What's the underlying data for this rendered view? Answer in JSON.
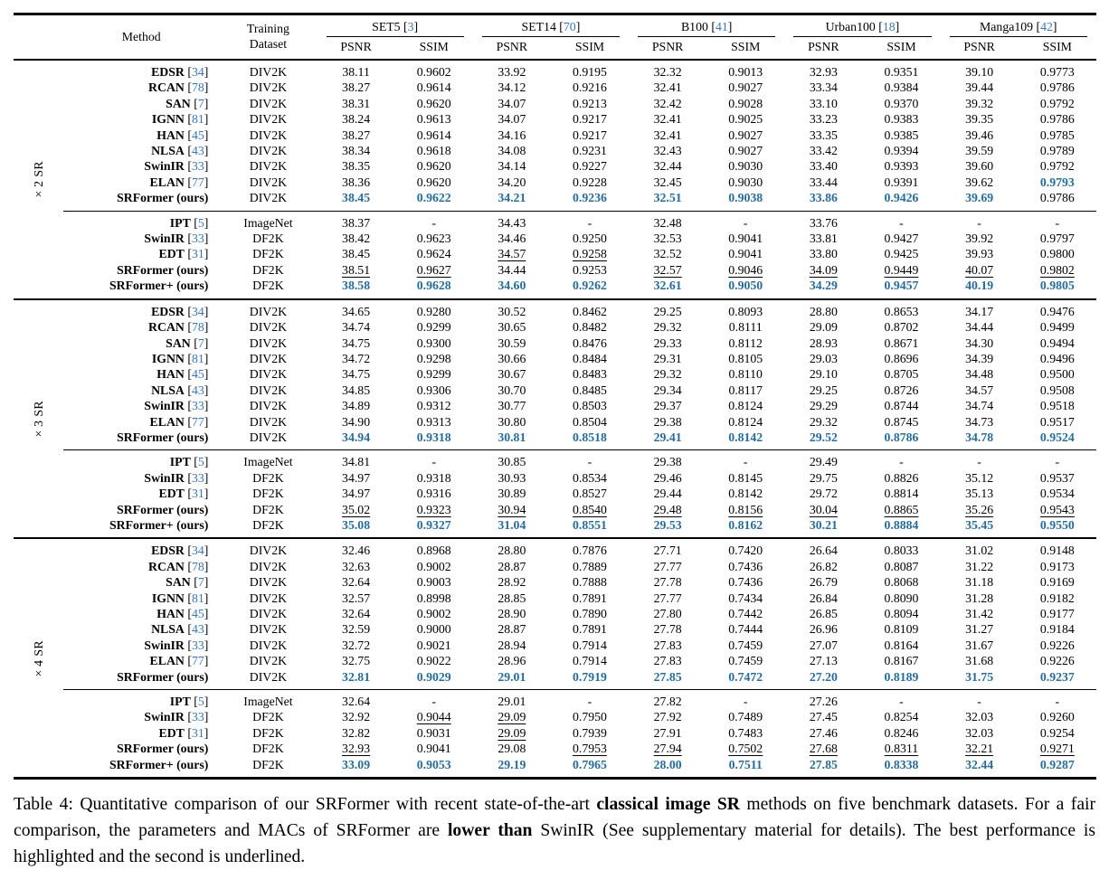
{
  "colors": {
    "highlight_blue": "#256d9e",
    "cite_blue": "#3677bd",
    "rule_black": "#000000"
  },
  "format": {
    "cite_open": "[",
    "cite_close": "]",
    "best_marker": "*",
    "second_marker": "_",
    "dash": "-"
  },
  "header": {
    "method_label": "Method",
    "training_label": "Training",
    "dataset_label": "Dataset",
    "metrics": [
      "PSNR",
      "SSIM"
    ],
    "benchmarks": [
      {
        "name": "SET5",
        "cite": "3"
      },
      {
        "name": "SET14",
        "cite": "70"
      },
      {
        "name": "B100",
        "cite": "41"
      },
      {
        "name": "Urban100",
        "cite": "18"
      },
      {
        "name": "Manga109",
        "cite": "42"
      }
    ]
  },
  "sections": [
    {
      "scale": "×2 SR",
      "blocks": [
        {
          "rows": [
            [
              "EDSR",
              "34",
              "DIV2K",
              "38.11",
              "0.9602",
              "33.92",
              "0.9195",
              "32.32",
              "0.9013",
              "32.93",
              "0.9351",
              "39.10",
              "0.9773"
            ],
            [
              "RCAN",
              "78",
              "DIV2K",
              "38.27",
              "0.9614",
              "34.12",
              "0.9216",
              "32.41",
              "0.9027",
              "33.34",
              "0.9384",
              "39.44",
              "0.9786"
            ],
            [
              "SAN",
              "7",
              "DIV2K",
              "38.31",
              "0.9620",
              "34.07",
              "0.9213",
              "32.42",
              "0.9028",
              "33.10",
              "0.9370",
              "39.32",
              "0.9792"
            ],
            [
              "IGNN",
              "81",
              "DIV2K",
              "38.24",
              "0.9613",
              "34.07",
              "0.9217",
              "32.41",
              "0.9025",
              "33.23",
              "0.9383",
              "39.35",
              "0.9786"
            ],
            [
              "HAN",
              "45",
              "DIV2K",
              "38.27",
              "0.9614",
              "34.16",
              "0.9217",
              "32.41",
              "0.9027",
              "33.35",
              "0.9385",
              "39.46",
              "0.9785"
            ],
            [
              "NLSA",
              "43",
              "DIV2K",
              "38.34",
              "0.9618",
              "34.08",
              "0.9231",
              "32.43",
              "0.9027",
              "33.42",
              "0.9394",
              "39.59",
              "0.9789"
            ],
            [
              "SwinIR",
              "33",
              "DIV2K",
              "38.35",
              "0.9620",
              "34.14",
              "0.9227",
              "32.44",
              "0.9030",
              "33.40",
              "0.9393",
              "39.60",
              "0.9792"
            ],
            [
              "ELAN",
              "77",
              "DIV2K",
              "38.36",
              "0.9620",
              "34.20",
              "0.9228",
              "32.45",
              "0.9030",
              "33.44",
              "0.9391",
              "39.62",
              "*0.9793"
            ],
            [
              "SRFormer (ours)",
              "",
              "DIV2K",
              "*38.45",
              "*0.9622",
              "*34.21",
              "*0.9236",
              "*32.51",
              "*0.9038",
              "*33.86",
              "*0.9426",
              "*39.69",
              "0.9786"
            ]
          ]
        },
        {
          "rows": [
            [
              "IPT",
              "5",
              "ImageNet",
              "38.37",
              "-",
              "34.43",
              "-",
              "32.48",
              "-",
              "33.76",
              "-",
              "-",
              "-"
            ],
            [
              "SwinIR",
              "33",
              "DF2K",
              "38.42",
              "0.9623",
              "34.46",
              "0.9250",
              "32.53",
              "0.9041",
              "33.81",
              "0.9427",
              "39.92",
              "0.9797"
            ],
            [
              "EDT",
              "31",
              "DF2K",
              "38.45",
              "0.9624",
              "_34.57",
              "_0.9258",
              "32.52",
              "0.9041",
              "33.80",
              "0.9425",
              "39.93",
              "0.9800"
            ],
            [
              "SRFormer (ours)",
              "",
              "DF2K",
              "_38.51",
              "_0.9627",
              "34.44",
              "0.9253",
              "_32.57",
              "_0.9046",
              "_34.09",
              "_0.9449",
              "_40.07",
              "_0.9802"
            ],
            [
              "SRFormer+ (ours)",
              "",
              "DF2K",
              "*38.58",
              "*0.9628",
              "*34.60",
              "*0.9262",
              "*32.61",
              "*0.9050",
              "*34.29",
              "*0.9457",
              "*40.19",
              "*0.9805"
            ]
          ]
        }
      ]
    },
    {
      "scale": "×3 SR",
      "blocks": [
        {
          "rows": [
            [
              "EDSR",
              "34",
              "DIV2K",
              "34.65",
              "0.9280",
              "30.52",
              "0.8462",
              "29.25",
              "0.8093",
              "28.80",
              "0.8653",
              "34.17",
              "0.9476"
            ],
            [
              "RCAN",
              "78",
              "DIV2K",
              "34.74",
              "0.9299",
              "30.65",
              "0.8482",
              "29.32",
              "0.8111",
              "29.09",
              "0.8702",
              "34.44",
              "0.9499"
            ],
            [
              "SAN",
              "7",
              "DIV2K",
              "34.75",
              "0.9300",
              "30.59",
              "0.8476",
              "29.33",
              "0.8112",
              "28.93",
              "0.8671",
              "34.30",
              "0.9494"
            ],
            [
              "IGNN",
              "81",
              "DIV2K",
              "34.72",
              "0.9298",
              "30.66",
              "0.8484",
              "29.31",
              "0.8105",
              "29.03",
              "0.8696",
              "34.39",
              "0.9496"
            ],
            [
              "HAN",
              "45",
              "DIV2K",
              "34.75",
              "0.9299",
              "30.67",
              "0.8483",
              "29.32",
              "0.8110",
              "29.10",
              "0.8705",
              "34.48",
              "0.9500"
            ],
            [
              "NLSA",
              "43",
              "DIV2K",
              "34.85",
              "0.9306",
              "30.70",
              "0.8485",
              "29.34",
              "0.8117",
              "29.25",
              "0.8726",
              "34.57",
              "0.9508"
            ],
            [
              "SwinIR",
              "33",
              "DIV2K",
              "34.89",
              "0.9312",
              "30.77",
              "0.8503",
              "29.37",
              "0.8124",
              "29.29",
              "0.8744",
              "34.74",
              "0.9518"
            ],
            [
              "ELAN",
              "77",
              "DIV2K",
              "34.90",
              "0.9313",
              "30.80",
              "0.8504",
              "29.38",
              "0.8124",
              "29.32",
              "0.8745",
              "34.73",
              "0.9517"
            ],
            [
              "SRFormer (ours)",
              "",
              "DIV2K",
              "*34.94",
              "*0.9318",
              "*30.81",
              "*0.8518",
              "*29.41",
              "*0.8142",
              "*29.52",
              "*0.8786",
              "*34.78",
              "*0.9524"
            ]
          ]
        },
        {
          "rows": [
            [
              "IPT",
              "5",
              "ImageNet",
              "34.81",
              "-",
              "30.85",
              "-",
              "29.38",
              "-",
              "29.49",
              "-",
              "-",
              "-"
            ],
            [
              "SwinIR",
              "33",
              "DF2K",
              "34.97",
              "0.9318",
              "30.93",
              "0.8534",
              "29.46",
              "0.8145",
              "29.75",
              "0.8826",
              "35.12",
              "0.9537"
            ],
            [
              "EDT",
              "31",
              "DF2K",
              "34.97",
              "0.9316",
              "30.89",
              "0.8527",
              "29.44",
              "0.8142",
              "29.72",
              "0.8814",
              "35.13",
              "0.9534"
            ],
            [
              "SRFormer (ours)",
              "",
              "DF2K",
              "_35.02",
              "_0.9323",
              "_30.94",
              "_0.8540",
              "_29.48",
              "_0.8156",
              "_30.04",
              "_0.8865",
              "_35.26",
              "_0.9543"
            ],
            [
              "SRFormer+ (ours)",
              "",
              "DF2K",
              "*35.08",
              "*0.9327",
              "*31.04",
              "*0.8551",
              "*29.53",
              "*0.8162",
              "*30.21",
              "*0.8884",
              "*35.45",
              "*0.9550"
            ]
          ]
        }
      ]
    },
    {
      "scale": "×4 SR",
      "blocks": [
        {
          "rows": [
            [
              "EDSR",
              "34",
              "DIV2K",
              "32.46",
              "0.8968",
              "28.80",
              "0.7876",
              "27.71",
              "0.7420",
              "26.64",
              "0.8033",
              "31.02",
              "0.9148"
            ],
            [
              "RCAN",
              "78",
              "DIV2K",
              "32.63",
              "0.9002",
              "28.87",
              "0.7889",
              "27.77",
              "0.7436",
              "26.82",
              "0.8087",
              "31.22",
              "0.9173"
            ],
            [
              "SAN",
              "7",
              "DIV2K",
              "32.64",
              "0.9003",
              "28.92",
              "0.7888",
              "27.78",
              "0.7436",
              "26.79",
              "0.8068",
              "31.18",
              "0.9169"
            ],
            [
              "IGNN",
              "81",
              "DIV2K",
              "32.57",
              "0.8998",
              "28.85",
              "0.7891",
              "27.77",
              "0.7434",
              "26.84",
              "0.8090",
              "31.28",
              "0.9182"
            ],
            [
              "HAN",
              "45",
              "DIV2K",
              "32.64",
              "0.9002",
              "28.90",
              "0.7890",
              "27.80",
              "0.7442",
              "26.85",
              "0.8094",
              "31.42",
              "0.9177"
            ],
            [
              "NLSA",
              "43",
              "DIV2K",
              "32.59",
              "0.9000",
              "28.87",
              "0.7891",
              "27.78",
              "0.7444",
              "26.96",
              "0.8109",
              "31.27",
              "0.9184"
            ],
            [
              "SwinIR",
              "33",
              "DIV2K",
              "32.72",
              "0.9021",
              "28.94",
              "0.7914",
              "27.83",
              "0.7459",
              "27.07",
              "0.8164",
              "31.67",
              "0.9226"
            ],
            [
              "ELAN",
              "77",
              "DIV2K",
              "32.75",
              "0.9022",
              "28.96",
              "0.7914",
              "27.83",
              "0.7459",
              "27.13",
              "0.8167",
              "31.68",
              "0.9226"
            ],
            [
              "SRFormer (ours)",
              "",
              "DIV2K",
              "*32.81",
              "*0.9029",
              "*29.01",
              "*0.7919",
              "*27.85",
              "*0.7472",
              "*27.20",
              "*0.8189",
              "*31.75",
              "*0.9237"
            ]
          ]
        },
        {
          "rows": [
            [
              "IPT",
              "5",
              "ImageNet",
              "32.64",
              "-",
              "29.01",
              "-",
              "27.82",
              "-",
              "27.26",
              "-",
              "-",
              "-"
            ],
            [
              "SwinIR",
              "33",
              "DF2K",
              "32.92",
              "_0.9044",
              "_29.09",
              "0.7950",
              "27.92",
              "0.7489",
              "27.45",
              "0.8254",
              "32.03",
              "0.9260"
            ],
            [
              "EDT",
              "31",
              "DF2K",
              "32.82",
              "0.9031",
              "_29.09",
              "0.7939",
              "27.91",
              "0.7483",
              "27.46",
              "0.8246",
              "32.03",
              "0.9254"
            ],
            [
              "SRFormer (ours)",
              "",
              "DF2K",
              "_32.93",
              "0.9041",
              "29.08",
              "_0.7953",
              "_27.94",
              "_0.7502",
              "_27.68",
              "_0.8311",
              "_32.21",
              "_0.9271"
            ],
            [
              "SRFormer+ (ours)",
              "",
              "DF2K",
              "*33.09",
              "*0.9053",
              "*29.19",
              "*0.7965",
              "*28.00",
              "*0.7511",
              "*27.85",
              "*0.8338",
              "*32.44",
              "*0.9287"
            ]
          ]
        }
      ]
    }
  ],
  "caption": {
    "segments": [
      {
        "text": "Table 4: Quantitative comparison of our SRFormer with recent state-of-the-art ",
        "bold": false
      },
      {
        "text": "classical image SR",
        "bold": true
      },
      {
        "text": " methods on five benchmark datasets. For a fair comparison, the parameters and MACs of SRFormer are ",
        "bold": false
      },
      {
        "text": "lower than",
        "bold": true
      },
      {
        "text": " SwinIR (See supplementary material for details). The best performance is highlighted and the second is underlined.",
        "bold": false
      }
    ]
  }
}
